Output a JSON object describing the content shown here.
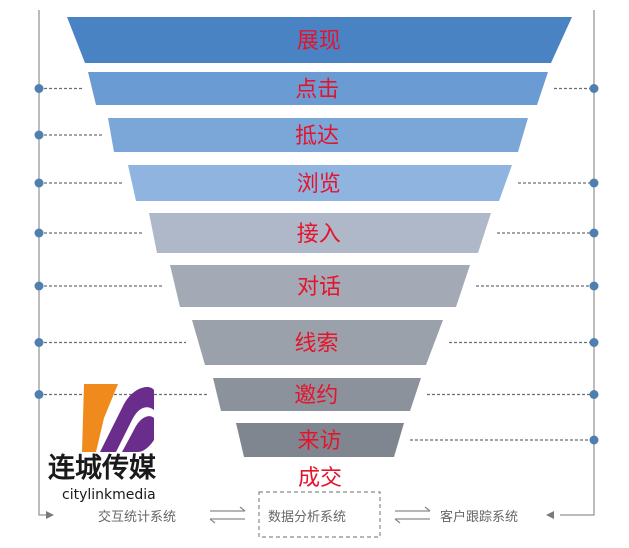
{
  "funnel": {
    "stages": [
      {
        "label": "展现",
        "color": "#4a83c4",
        "dots": "none"
      },
      {
        "label": "点击",
        "color": "#6a9bd2",
        "dots": "both"
      },
      {
        "label": "抵达",
        "color": "#7ba6d8",
        "dots": "left"
      },
      {
        "label": "浏览",
        "color": "#8fb4df",
        "dots": "both"
      },
      {
        "label": "接入",
        "color": "#aeb8c8",
        "dots": "both"
      },
      {
        "label": "对话",
        "color": "#a3aab5",
        "dots": "both"
      },
      {
        "label": "线索",
        "color": "#9ba1aa",
        "dots": "both"
      },
      {
        "label": "邀约",
        "color": "#8c929b",
        "dots": "both"
      },
      {
        "label": "来访",
        "color": "#80868f",
        "dots": "right"
      },
      {
        "label": "成交",
        "color": "#ffffff",
        "dots": "none"
      }
    ]
  },
  "systems": {
    "left_label": "交互统计系统",
    "center_label": "数据分析系统",
    "right_label": "客户跟踪系统"
  },
  "logo": {
    "name": "连城传媒",
    "english": "citylinkmedia"
  },
  "colors": {
    "stage_text": "#e5142d",
    "dot": "#4f7fae",
    "logo_orange": "#f08a1c",
    "logo_purple": "#6b2d8c"
  }
}
